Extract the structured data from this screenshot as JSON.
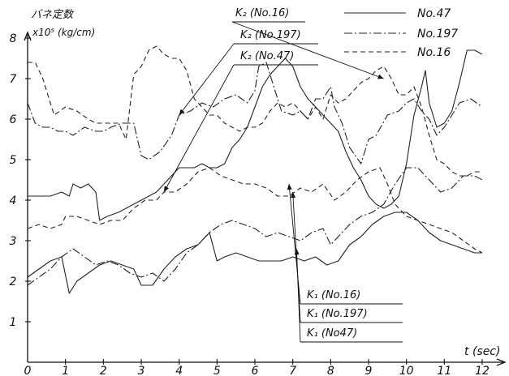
{
  "chart_data": {
    "type": "line",
    "ylabel": "バネ定数",
    "ylabel_unit": "x10⁵ (kg/cm)",
    "xlabel": "t (sec)",
    "xlim": [
      0,
      12
    ],
    "ylim": [
      0,
      8
    ],
    "x_ticks": [
      "0",
      "1",
      "2",
      "3",
      "4",
      "5",
      "6",
      "7",
      "8",
      "9",
      "10",
      "11",
      "12"
    ],
    "y_ticks": [
      "1",
      "2",
      "3",
      "4",
      "5",
      "6",
      "7",
      "8"
    ],
    "grid": false,
    "legend": {
      "placement": "top-right",
      "entries": [
        {
          "label": "No.47",
          "style": "solid"
        },
        {
          "label": "No.197",
          "style": "dashdot"
        },
        {
          "label": "No.16",
          "style": "dashed"
        }
      ]
    },
    "annotations": [
      {
        "text": "K₂ (No.16)",
        "target": {
          "x": 9.4,
          "y": 7.0
        }
      },
      {
        "text": "K₂ (No.197)",
        "target": {
          "x": 4.0,
          "y": 6.1
        }
      },
      {
        "text": "K₂ (No.47)",
        "target": {
          "x": 3.6,
          "y": 4.2
        }
      },
      {
        "text": "K₁ (No.16)",
        "target": {
          "x": 6.9,
          "y": 4.4
        }
      },
      {
        "text": "K₁ (No.197)",
        "target": {
          "x": 7.0,
          "y": 4.2
        }
      },
      {
        "text": "K₁ (No47)",
        "target": {
          "x": 7.1,
          "y": 2.8
        }
      }
    ],
    "series": [
      {
        "name": "K₂ (No.16)",
        "style": "dashed",
        "x": [
          0,
          0.2,
          0.4,
          0.7,
          1.0,
          1.3,
          1.6,
          1.8,
          2.1,
          2.4,
          2.6,
          2.8,
          3.0,
          3.2,
          3.4,
          3.6,
          3.8,
          4.0,
          4.2,
          4.4,
          4.6,
          4.8,
          5.0,
          5.2,
          5.4,
          5.6,
          5.8,
          6.0,
          6.2,
          6.4,
          6.6,
          6.8,
          7.0,
          7.2,
          7.4,
          7.6,
          7.8,
          8.0,
          8.2,
          8.4,
          8.6,
          8.8,
          9.0,
          9.2,
          9.4,
          9.6,
          9.8,
          10.0,
          10.2,
          10.4,
          10.6,
          10.8,
          11.0,
          11.2,
          11.4,
          11.6,
          11.8,
          12.0
        ],
        "values": [
          7.4,
          7.4,
          7.0,
          6.1,
          6.3,
          6.2,
          6.0,
          5.9,
          5.9,
          5.9,
          5.5,
          7.1,
          7.3,
          7.7,
          7.8,
          7.6,
          7.5,
          7.5,
          7.2,
          6.5,
          6.3,
          6.1,
          6.1,
          5.9,
          5.8,
          5.7,
          5.8,
          5.8,
          5.9,
          6.2,
          6.4,
          6.3,
          6.4,
          6.2,
          6.0,
          6.3,
          6.0,
          6.6,
          6.4,
          6.5,
          6.7,
          6.9,
          7.0,
          7.2,
          7.3,
          7.0,
          6.6,
          6.6,
          6.8,
          6.3,
          5.6,
          5.0,
          4.9,
          4.7,
          4.6,
          4.6,
          4.7,
          4.7
        ]
      },
      {
        "name": "K₂ (No.197)",
        "style": "dashdot",
        "x": [
          0,
          0.2,
          0.4,
          0.6,
          0.8,
          1.0,
          1.2,
          1.5,
          1.8,
          2.0,
          2.2,
          2.5,
          2.8,
          3.0,
          3.2,
          3.5,
          3.8,
          4.0,
          4.3,
          4.6,
          4.9,
          5.2,
          5.5,
          5.8,
          6.0,
          6.1,
          6.3,
          6.5,
          6.7,
          7.0,
          7.2,
          7.4,
          7.6,
          7.8,
          8.0,
          8.1,
          8.3,
          8.5,
          8.8,
          9.0,
          9.2,
          9.5,
          9.8,
          10.0,
          10.2,
          10.4,
          10.6,
          10.8,
          11.0,
          11.2,
          11.4,
          11.7,
          12.0
        ],
        "values": [
          6.4,
          5.9,
          5.8,
          5.8,
          5.7,
          5.7,
          5.6,
          5.8,
          5.7,
          5.7,
          5.8,
          5.9,
          5.9,
          5.1,
          5.0,
          5.2,
          5.6,
          6.1,
          6.2,
          6.4,
          6.3,
          6.5,
          6.6,
          6.4,
          6.7,
          7.3,
          7.4,
          6.8,
          6.2,
          6.1,
          6.2,
          6.0,
          6.5,
          6.5,
          6.8,
          6.3,
          5.9,
          5.3,
          4.9,
          5.5,
          5.6,
          6.1,
          6.2,
          6.4,
          6.5,
          6.2,
          6.0,
          5.6,
          5.8,
          6.1,
          6.4,
          6.5,
          6.3
        ]
      },
      {
        "name": "K₂ (No.47)",
        "style": "solid",
        "x": [
          0,
          0.3,
          0.6,
          0.9,
          1.1,
          1.2,
          1.4,
          1.6,
          1.8,
          1.9,
          2.1,
          2.4,
          2.6,
          2.8,
          3.0,
          3.2,
          3.4,
          3.6,
          3.8,
          4.0,
          4.2,
          4.4,
          4.6,
          4.8,
          5.0,
          5.2,
          5.4,
          5.6,
          5.8,
          6.0,
          6.2,
          6.4,
          6.6,
          6.8,
          7.0,
          7.2,
          7.4,
          7.6,
          7.8,
          8.0,
          8.2,
          8.4,
          8.6,
          8.8,
          9.0,
          9.2,
          9.4,
          9.6,
          9.8,
          10.0,
          10.2,
          10.4,
          10.5,
          10.6,
          10.8,
          11.0,
          11.2,
          11.4,
          11.6,
          11.8,
          12.0
        ],
        "values": [
          4.1,
          4.1,
          4.1,
          4.2,
          4.1,
          4.4,
          4.3,
          4.4,
          4.2,
          3.5,
          3.6,
          3.7,
          3.8,
          3.9,
          4.0,
          4.1,
          4.2,
          4.4,
          4.6,
          4.8,
          4.8,
          4.8,
          4.9,
          4.8,
          4.8,
          4.9,
          5.3,
          5.5,
          5.8,
          6.3,
          6.8,
          7.1,
          7.3,
          7.5,
          7.3,
          6.8,
          6.5,
          6.3,
          6.1,
          5.9,
          5.7,
          5.2,
          4.8,
          4.5,
          4.1,
          3.9,
          3.8,
          3.9,
          4.1,
          4.9,
          6.1,
          6.8,
          7.2,
          6.4,
          5.8,
          5.9,
          6.2,
          6.9,
          7.7,
          7.7,
          7.6
        ]
      },
      {
        "name": "K₁ (No.16)",
        "style": "dashed",
        "x": [
          0,
          0.3,
          0.6,
          0.9,
          1.0,
          1.3,
          1.6,
          1.9,
          2.2,
          2.5,
          2.8,
          3.1,
          3.4,
          3.6,
          3.9,
          4.2,
          4.5,
          4.8,
          5.1,
          5.4,
          5.7,
          6.0,
          6.3,
          6.6,
          6.9,
          7.2,
          7.5,
          7.8,
          8.1,
          8.4,
          8.7,
          9.0,
          9.3,
          9.5,
          9.7,
          10.0,
          10.3,
          10.6,
          10.9,
          11.2,
          11.5,
          11.8,
          12.0
        ],
        "values": [
          3.3,
          3.4,
          3.3,
          3.4,
          3.6,
          3.6,
          3.5,
          3.4,
          3.5,
          3.5,
          3.8,
          4.0,
          4.0,
          4.2,
          4.2,
          4.4,
          4.7,
          4.8,
          4.6,
          4.5,
          4.4,
          4.4,
          4.3,
          4.1,
          4.1,
          4.3,
          4.2,
          4.4,
          4.0,
          4.2,
          4.5,
          4.7,
          4.8,
          4.4,
          3.9,
          3.6,
          3.5,
          3.4,
          3.3,
          3.2,
          3.0,
          2.8,
          2.7
        ]
      },
      {
        "name": "K₁ (No.197)",
        "style": "dashdot",
        "x": [
          0,
          0.3,
          0.6,
          0.9,
          1.2,
          1.5,
          1.8,
          2.1,
          2.4,
          2.7,
          3.0,
          3.3,
          3.6,
          3.9,
          4.2,
          4.5,
          4.8,
          5.1,
          5.4,
          5.7,
          6.0,
          6.3,
          6.6,
          6.9,
          7.2,
          7.5,
          7.8,
          8.0,
          8.2,
          8.5,
          8.8,
          9.1,
          9.4,
          9.7,
          10.0,
          10.3,
          10.6,
          10.9,
          11.2,
          11.5,
          11.8,
          12.0
        ],
        "values": [
          1.9,
          2.1,
          2.3,
          2.6,
          2.8,
          2.6,
          2.4,
          2.5,
          2.4,
          2.2,
          2.1,
          2.2,
          2.0,
          2.3,
          2.7,
          2.9,
          3.2,
          3.4,
          3.5,
          3.4,
          3.3,
          3.1,
          3.2,
          3.1,
          3.0,
          3.2,
          3.3,
          2.9,
          3.1,
          3.4,
          3.6,
          3.7,
          3.9,
          4.4,
          4.8,
          4.8,
          4.5,
          4.2,
          4.3,
          4.6,
          4.6,
          4.5
        ]
      },
      {
        "name": "K₁ (No47)",
        "style": "solid",
        "x": [
          0,
          0.3,
          0.6,
          0.9,
          1.1,
          1.3,
          1.6,
          1.9,
          2.2,
          2.5,
          2.8,
          3.0,
          3.3,
          3.6,
          3.9,
          4.2,
          4.5,
          4.8,
          5.0,
          5.2,
          5.5,
          5.8,
          6.1,
          6.4,
          6.7,
          7.0,
          7.3,
          7.6,
          7.9,
          8.2,
          8.5,
          8.8,
          9.1,
          9.4,
          9.7,
          10.0,
          10.3,
          10.6,
          10.9,
          11.2,
          11.5,
          11.8,
          12.0
        ],
        "values": [
          2.1,
          2.3,
          2.5,
          2.6,
          1.7,
          2.0,
          2.2,
          2.4,
          2.5,
          2.4,
          2.3,
          1.9,
          1.9,
          2.3,
          2.6,
          2.8,
          2.9,
          3.2,
          2.5,
          2.6,
          2.7,
          2.6,
          2.5,
          2.5,
          2.5,
          2.6,
          2.5,
          2.6,
          2.4,
          2.5,
          2.9,
          3.1,
          3.4,
          3.6,
          3.7,
          3.7,
          3.5,
          3.2,
          3.0,
          2.9,
          2.8,
          2.7,
          2.7
        ]
      }
    ]
  }
}
